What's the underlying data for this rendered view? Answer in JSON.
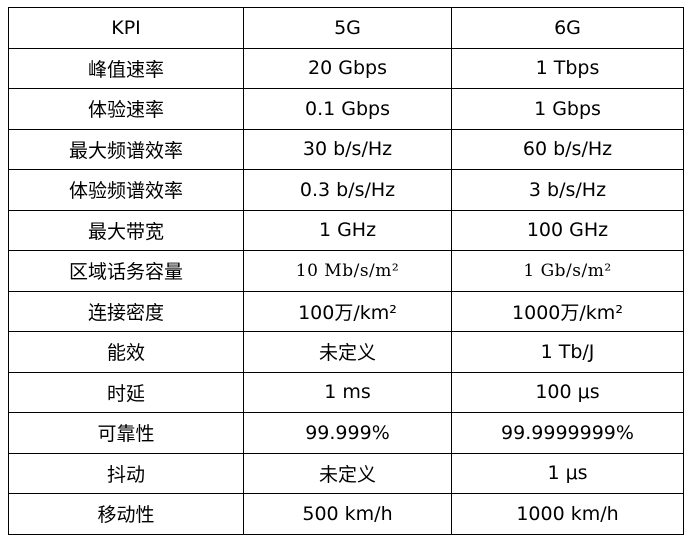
{
  "table": {
    "headers": [
      "KPI",
      "5G",
      "6G"
    ],
    "rows": [
      [
        "峰值速率",
        "20 Gbps",
        "1 Tbps"
      ],
      [
        "体验速率",
        "0.1 Gbps",
        "1 Gbps"
      ],
      [
        "最大频谱效率",
        "30 b/s/Hz",
        "60 b/s/Hz"
      ],
      [
        "体验频谱效率",
        "0.3 b/s/Hz",
        "3 b/s/Hz"
      ],
      [
        "最大带宽",
        "1 GHz",
        "100 GHz"
      ],
      [
        "区域话务容量",
        "10 Mb/s/m²",
        "1 Gb/s/m²"
      ],
      [
        "连接密度",
        "100万/km²",
        "1000万/km²"
      ],
      [
        "能效",
        "未定义",
        "1 Tb/J"
      ],
      [
        "时延",
        "1 ms",
        "100 μs"
      ],
      [
        "可靠性",
        "99.999%",
        "99.9999999%"
      ],
      [
        "抖动",
        "未定义",
        "1 μs"
      ],
      [
        "移动性",
        "500 km/h",
        "1000 km/h"
      ]
    ]
  }
}
